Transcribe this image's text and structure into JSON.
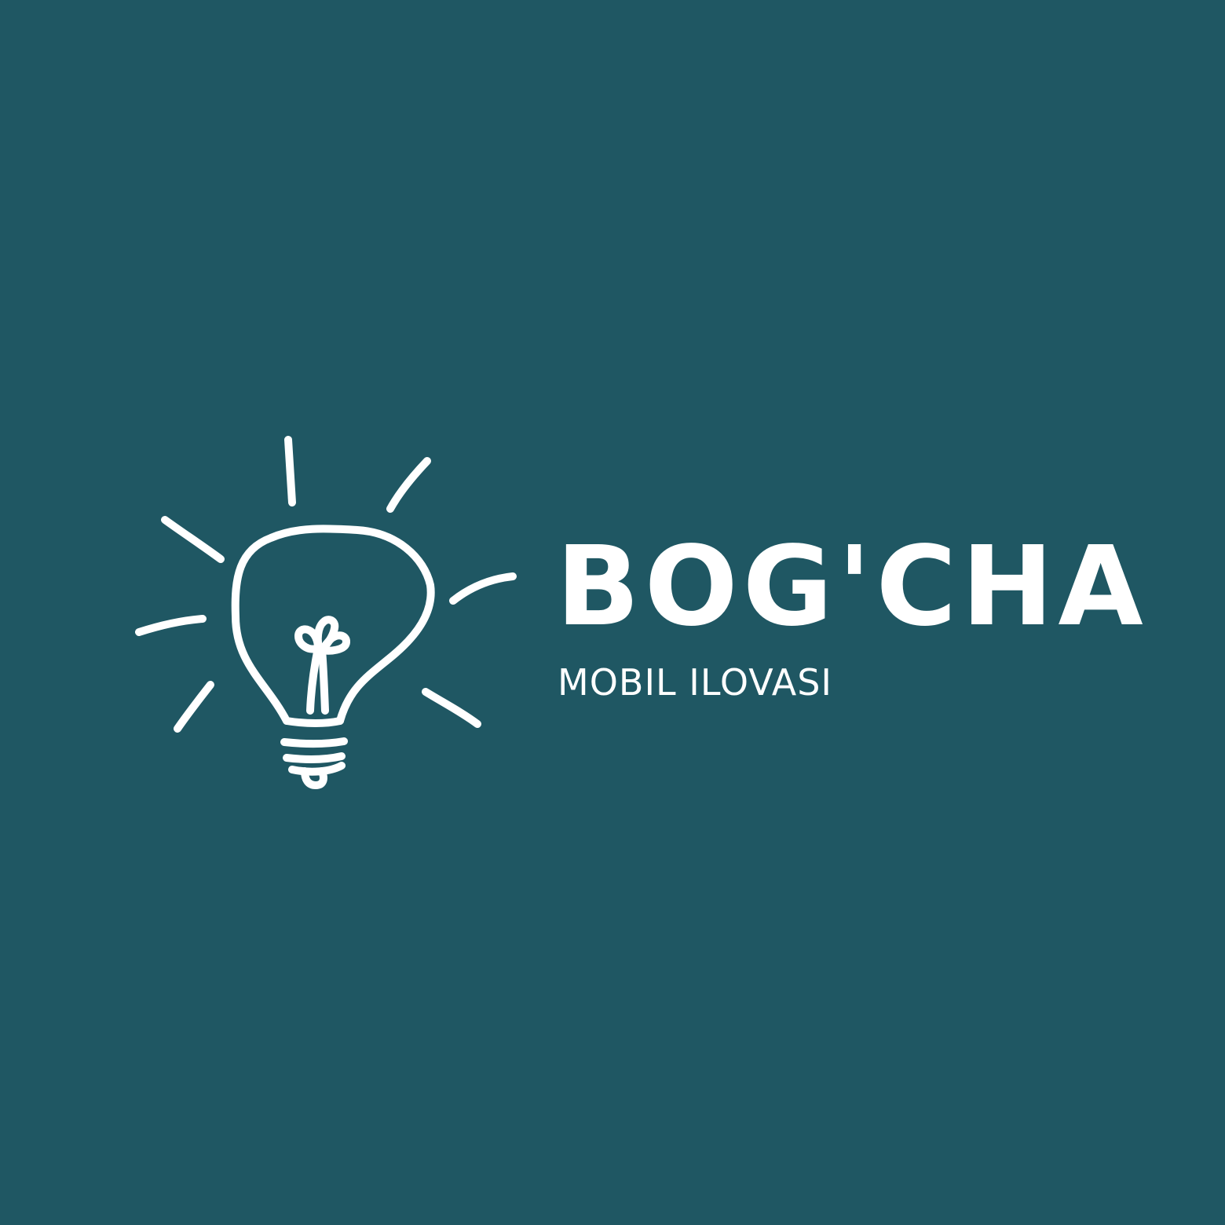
{
  "logo": {
    "title": "BOG'CHA",
    "subtitle": "MOBIL ILOVASI",
    "icon": "lightbulb-icon",
    "colors": {
      "background": "#1f5763",
      "foreground": "#ffffff"
    }
  }
}
